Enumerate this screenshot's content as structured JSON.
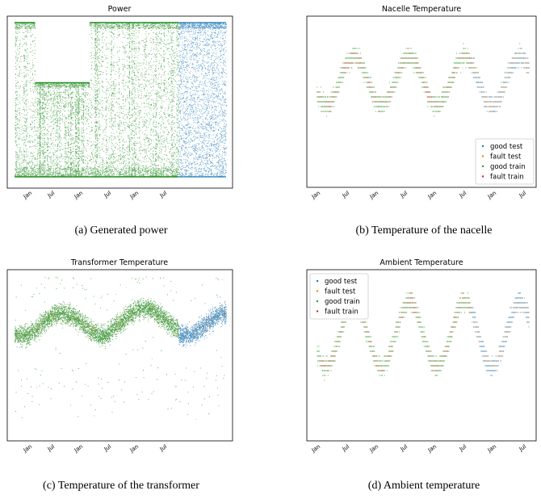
{
  "colors": {
    "good_test": "#1f77b4",
    "fault_test": "#ff7f0e",
    "good_train": "#2ca02c",
    "fault_train": "#d62728",
    "power_train": "#228b22"
  },
  "chart_data": [
    {
      "id": "power",
      "type": "scatter",
      "title": "Power",
      "caption": "(a) Generated power",
      "x_ticks": [
        "Jan",
        "Jul",
        "Jan",
        "Jul",
        "Jan",
        "Jul"
      ],
      "x_range_months": [
        0,
        31
      ],
      "legend": null,
      "series": [
        {
          "class": "train",
          "x_range": [
            0,
            24
          ],
          "y_range": [
            0,
            1
          ],
          "gap": {
            "x": [
              3,
              11
            ],
            "y_max": 0.61
          }
        },
        {
          "class": "test",
          "x_range": [
            24,
            31
          ],
          "y_range": [
            0,
            1
          ]
        }
      ]
    },
    {
      "id": "nacelle",
      "type": "scatter",
      "title": "Nacelle Temperature",
      "caption": "(b) Temperature of the nacelle",
      "x_ticks": [
        "Jan",
        "Jul",
        "Jan",
        "Jul",
        "Jan",
        "Jul",
        "Jan",
        "Jul"
      ],
      "legend": {
        "placement": "lower-right",
        "entries": [
          {
            "label": "good test",
            "series": "good_test"
          },
          {
            "label": "fault test",
            "series": "fault_test"
          },
          {
            "label": "good train",
            "series": "good_train"
          },
          {
            "label": "fault train",
            "series": "fault_train"
          }
        ]
      },
      "seasonal": {
        "minima_months": [
          2,
          14,
          26,
          38
        ],
        "maxima_months": [
          8,
          20,
          32,
          44
        ]
      }
    },
    {
      "id": "transformer",
      "type": "scatter",
      "title": "Transformer Temperature",
      "caption": "(c) Temperature of the transformer",
      "x_ticks": [
        "Jan",
        "Jul",
        "Jan",
        "Jul",
        "Jan",
        "Jul"
      ],
      "legend": null
    },
    {
      "id": "ambient",
      "type": "scatter",
      "title": "Ambient Temperature",
      "caption": "(d) Ambient temperature",
      "x_ticks": [
        "Jan",
        "Jul",
        "Jan",
        "Jul",
        "Jan",
        "Jul",
        "Jan",
        "Jul"
      ],
      "legend": {
        "placement": "upper-left",
        "entries": [
          {
            "label": "good test",
            "series": "good_test"
          },
          {
            "label": "fault test",
            "series": "fault_test"
          },
          {
            "label": "good train",
            "series": "good_train"
          },
          {
            "label": "fault train",
            "series": "fault_train"
          }
        ]
      }
    }
  ]
}
